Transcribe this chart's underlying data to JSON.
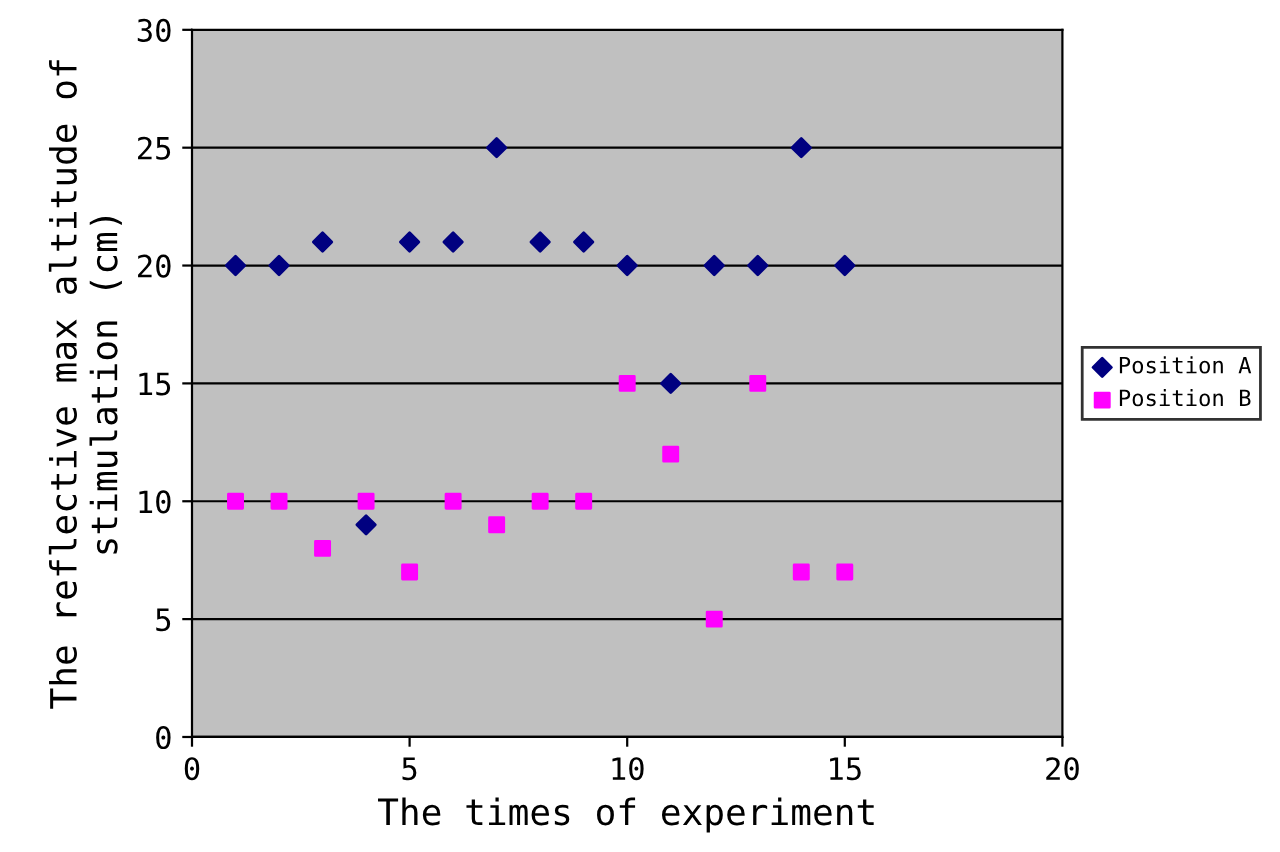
{
  "chart_data": {
    "type": "scatter",
    "xlabel": "The times of experiment",
    "ylabel": "The reflective max altitude of\nstimulation (cm)",
    "x": [
      1,
      2,
      3,
      4,
      5,
      6,
      7,
      8,
      9,
      10,
      11,
      12,
      13,
      14,
      15
    ],
    "series": [
      {
        "name": "Position A",
        "color": "#000080",
        "marker": "diamond",
        "values": [
          20,
          20,
          21,
          9,
          21,
          21,
          25,
          21,
          21,
          20,
          15,
          20,
          20,
          25,
          20
        ]
      },
      {
        "name": "Position B",
        "color": "#ff00ff",
        "marker": "square",
        "values": [
          10,
          10,
          8,
          10,
          7,
          10,
          9,
          10,
          10,
          15,
          12,
          5,
          15,
          7,
          7
        ]
      }
    ],
    "xlim": [
      0,
      20
    ],
    "xticks": [
      0,
      5,
      10,
      15,
      20
    ],
    "ylim": [
      0,
      30
    ],
    "yticks": [
      0,
      5,
      10,
      15,
      20,
      25,
      30
    ],
    "grid": "y",
    "legend": "right"
  }
}
